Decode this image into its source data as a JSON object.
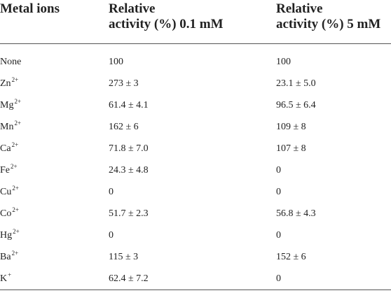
{
  "table": {
    "headers": [
      {
        "line1": "Metal ions",
        "line2": ""
      },
      {
        "line1": "Relative",
        "line2": "activity (%) 0.1 mM"
      },
      {
        "line1": "Relative",
        "line2": "activity (%) 5 mM"
      }
    ],
    "rows": [
      {
        "ion": "None",
        "charge": "",
        "v01": "100",
        "v5": "100"
      },
      {
        "ion": "Zn",
        "charge": "2+",
        "v01": "273 ± 3",
        "v5": "23.1 ± 5.0"
      },
      {
        "ion": "Mg",
        "charge": "2+",
        "v01": "61.4 ± 4.1",
        "v5": "96.5 ± 6.4"
      },
      {
        "ion": "Mn",
        "charge": "2+",
        "v01": "162 ± 6",
        "v5": "109 ± 8"
      },
      {
        "ion": "Ca",
        "charge": "2+",
        "v01": "71.8 ± 7.0",
        "v5": "107 ± 8"
      },
      {
        "ion": "Fe",
        "charge": "2+",
        "v01": "24.3 ± 4.8",
        "v5": "0"
      },
      {
        "ion": "Cu",
        "charge": "2+",
        "v01": "0",
        "v5": "0"
      },
      {
        "ion": "Co",
        "charge": "2+",
        "v01": "51.7 ± 2.3",
        "v5": "56.8 ± 4.3"
      },
      {
        "ion": "Hg",
        "charge": "2+",
        "v01": "0",
        "v5": "0"
      },
      {
        "ion": "Ba",
        "charge": "2+",
        "v01": "115 ± 3",
        "v5": "152 ± 6"
      },
      {
        "ion": "K",
        "charge": "+",
        "v01": "62.4 ± 7.2",
        "v5": "0"
      }
    ]
  }
}
